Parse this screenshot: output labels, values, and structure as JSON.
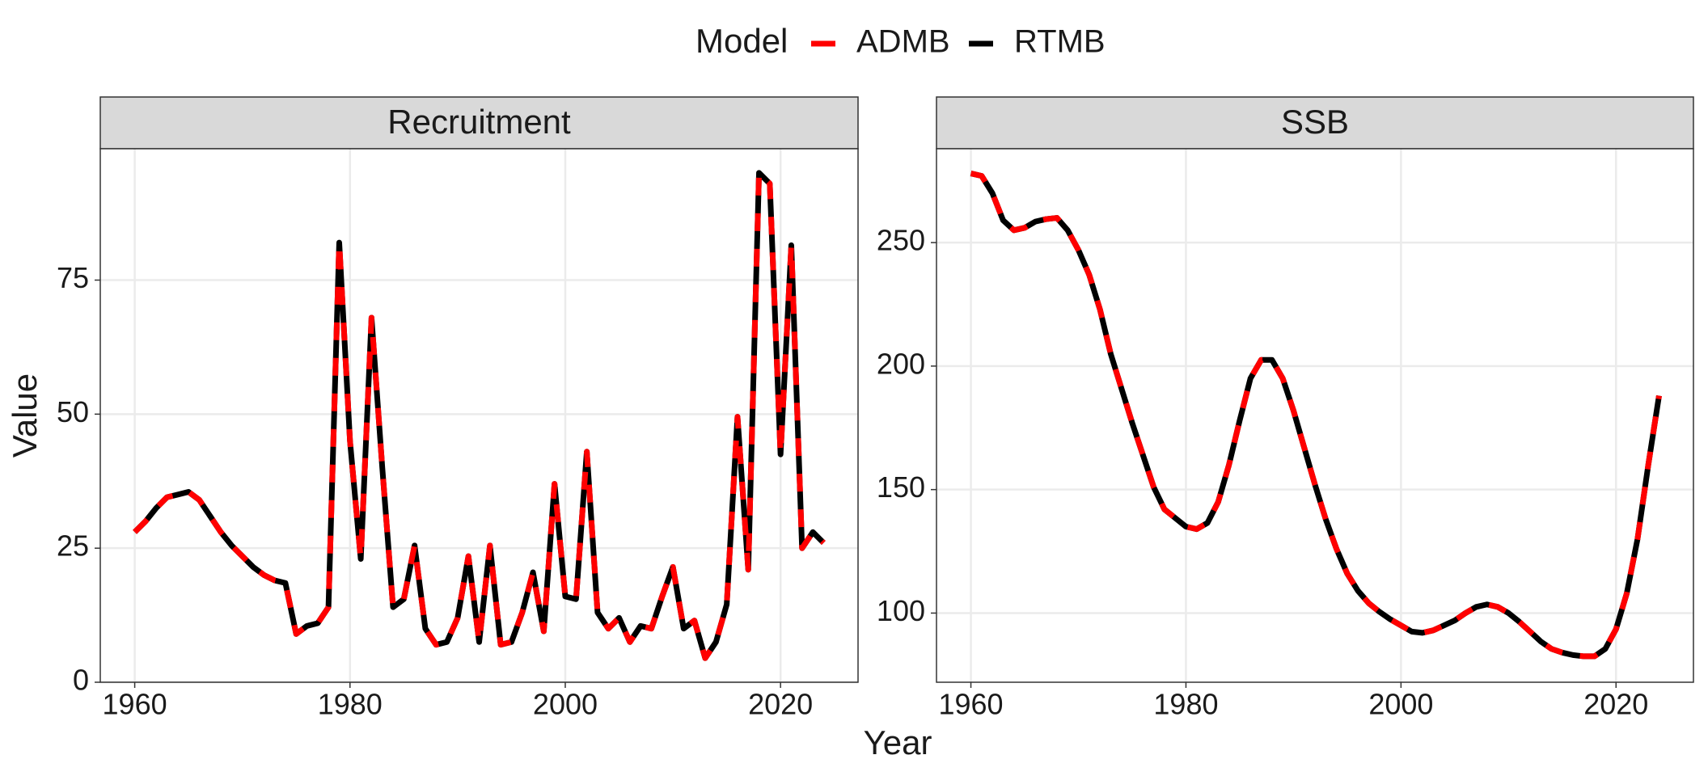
{
  "legend_title": "Model",
  "xlabel": "Year",
  "ylabel": "Value",
  "chart_data": [
    {
      "type": "line",
      "title": "Recruitment",
      "x": [
        1960,
        1961,
        1962,
        1963,
        1964,
        1965,
        1966,
        1967,
        1968,
        1969,
        1970,
        1971,
        1972,
        1973,
        1974,
        1975,
        1976,
        1977,
        1978,
        1979,
        1980,
        1981,
        1982,
        1983,
        1984,
        1985,
        1986,
        1987,
        1988,
        1989,
        1990,
        1991,
        1992,
        1993,
        1994,
        1995,
        1996,
        1997,
        1998,
        1999,
        2000,
        2001,
        2002,
        2003,
        2004,
        2005,
        2006,
        2007,
        2008,
        2009,
        2010,
        2011,
        2012,
        2013,
        2014,
        2015,
        2016,
        2017,
        2018,
        2019,
        2020,
        2021,
        2022,
        2023,
        2024
      ],
      "series": [
        {
          "name": "ADMB",
          "color": "#ff0000",
          "dashed": true,
          "values": [
            28,
            30,
            32.5,
            34.5,
            35,
            35.5,
            34,
            31,
            28,
            25.5,
            23.5,
            21.5,
            20,
            19,
            18.5,
            9,
            10.5,
            11,
            14,
            82,
            45,
            23,
            68,
            40,
            14,
            15.5,
            25.5,
            10,
            7,
            7.5,
            12,
            23.5,
            7.5,
            25.5,
            7,
            7.5,
            13,
            20.5,
            9.5,
            37,
            16,
            15.5,
            43,
            13,
            10,
            12,
            7.5,
            10.5,
            10,
            16,
            21.5,
            10,
            11.5,
            4.5,
            7.5,
            14.5,
            49.5,
            21,
            95,
            93,
            42.5,
            81.5,
            25,
            28,
            26
          ]
        },
        {
          "name": "RTMB",
          "color": "#000000",
          "dashed": false,
          "values": [
            28,
            30,
            32.5,
            34.5,
            35,
            35.5,
            34,
            31,
            28,
            25.5,
            23.5,
            21.5,
            20,
            19,
            18.5,
            9,
            10.5,
            11,
            14,
            82,
            45,
            23,
            68,
            40,
            14,
            15.5,
            25.5,
            10,
            7,
            7.5,
            12,
            23.5,
            7.5,
            25.5,
            7,
            7.5,
            13,
            20.5,
            9.5,
            37,
            16,
            15.5,
            43,
            13,
            10,
            12,
            7.5,
            10.5,
            10,
            16,
            21.5,
            10,
            11.5,
            4.5,
            7.5,
            14.5,
            49.5,
            21,
            95,
            93,
            42.5,
            81.5,
            25,
            28,
            26
          ]
        }
      ],
      "xlim": [
        1956.8,
        2027.2
      ],
      "xticks": [
        1960,
        1980,
        2000,
        2020
      ],
      "ylim": [
        0,
        99.5
      ],
      "yticks": [
        0,
        25,
        50,
        75
      ],
      "grid": true
    },
    {
      "type": "line",
      "title": "SSB",
      "x": [
        1960,
        1961,
        1962,
        1963,
        1964,
        1965,
        1966,
        1967,
        1968,
        1969,
        1970,
        1971,
        1972,
        1973,
        1974,
        1975,
        1976,
        1977,
        1978,
        1979,
        1980,
        1981,
        1982,
        1983,
        1984,
        1985,
        1986,
        1987,
        1988,
        1989,
        1990,
        1991,
        1992,
        1993,
        1994,
        1995,
        1996,
        1997,
        1998,
        1999,
        2000,
        2001,
        2002,
        2003,
        2004,
        2005,
        2006,
        2007,
        2008,
        2009,
        2010,
        2011,
        2012,
        2013,
        2014,
        2015,
        2016,
        2017,
        2018,
        2019,
        2020,
        2021,
        2022,
        2023,
        2024
      ],
      "series": [
        {
          "name": "ADMB",
          "color": "#ff0000",
          "dashed": true,
          "values": [
            278,
            277,
            270,
            259,
            255,
            256,
            258.5,
            259.5,
            260,
            255,
            247,
            237,
            223,
            205,
            191,
            177,
            164,
            151,
            142,
            138.5,
            135,
            134,
            136.5,
            145,
            160,
            178,
            195,
            202.5,
            202.5,
            195,
            182,
            167,
            152,
            138,
            126,
            116,
            109,
            104,
            100.5,
            97.5,
            95,
            92.5,
            92,
            93,
            95,
            97,
            100,
            102.5,
            103.5,
            102.5,
            100,
            96.5,
            92.5,
            88.5,
            85.5,
            84,
            83,
            82.5,
            82.5,
            85.5,
            93.5,
            108,
            130,
            160,
            188
          ]
        },
        {
          "name": "RTMB",
          "color": "#000000",
          "dashed": false,
          "values": [
            278,
            277,
            270,
            259,
            255,
            256,
            258.5,
            259.5,
            260,
            255,
            247,
            237,
            223,
            205,
            191,
            177,
            164,
            151,
            142,
            138.5,
            135,
            134,
            136.5,
            145,
            160,
            178,
            195,
            202.5,
            202.5,
            195,
            182,
            167,
            152,
            138,
            126,
            116,
            109,
            104,
            100.5,
            97.5,
            95,
            92.5,
            92,
            93,
            95,
            97,
            100,
            102.5,
            103.5,
            102.5,
            100,
            96.5,
            92.5,
            88.5,
            85.5,
            84,
            83,
            82.5,
            82.5,
            85.5,
            93.5,
            108,
            130,
            160,
            188
          ]
        }
      ],
      "xlim": [
        1956.8,
        2027.2
      ],
      "xticks": [
        1960,
        1980,
        2000,
        2020
      ],
      "ylim": [
        72,
        288
      ],
      "yticks": [
        100,
        150,
        200,
        250
      ],
      "grid": true
    }
  ]
}
